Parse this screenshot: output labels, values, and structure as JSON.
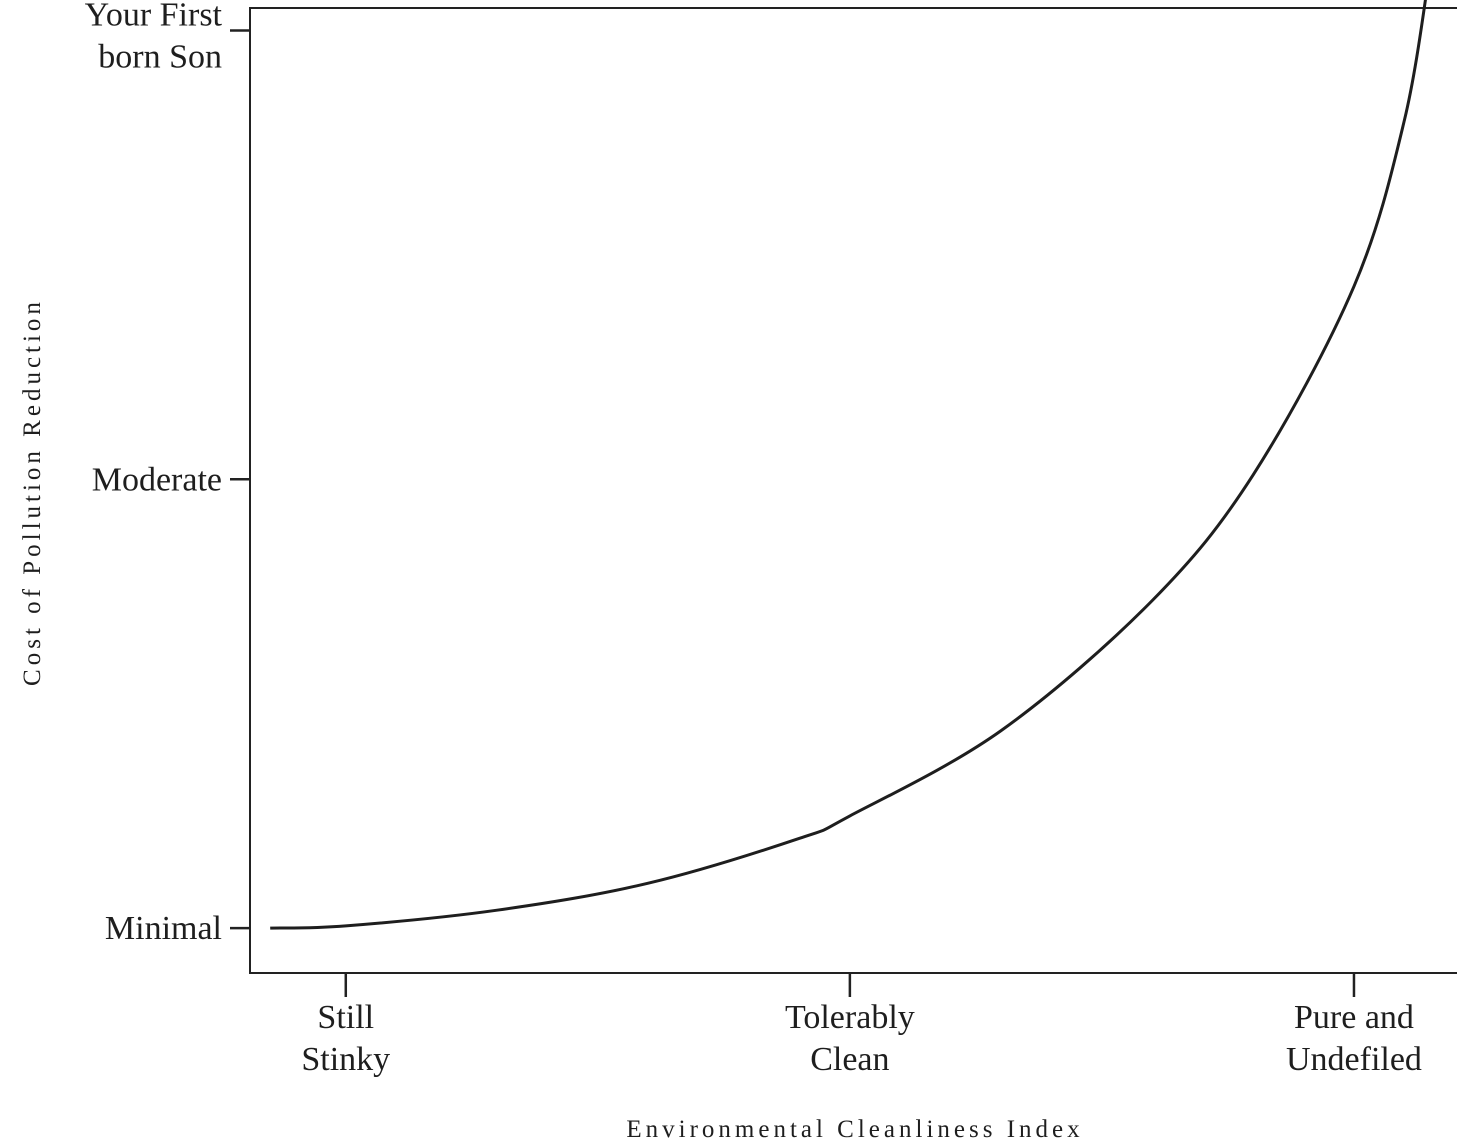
{
  "chart_data": {
    "type": "line",
    "title": "",
    "xlabel": "Environmental Cleanliness Index",
    "ylabel": "Cost of Pollution Reduction",
    "x_categories": [
      {
        "position": 1,
        "lines": [
          "Still",
          "Stinky"
        ]
      },
      {
        "position": 2,
        "lines": [
          "Tolerably",
          "Clean"
        ]
      },
      {
        "position": 3,
        "lines": [
          "Pure and",
          "Undefiled"
        ]
      }
    ],
    "y_categories": [
      {
        "position": 0,
        "lines": [
          "Minimal"
        ]
      },
      {
        "position": 1,
        "lines": [
          "Moderate"
        ]
      },
      {
        "position": 2,
        "lines": [
          "Your First",
          "born Son"
        ]
      }
    ],
    "xlim": [
      0.81,
      3.25
    ],
    "ylim": [
      -0.1,
      2.05
    ],
    "grid": false,
    "legend": "none",
    "series": [
      {
        "x": [
          0.85,
          1.0,
          1.3,
          1.6,
          1.9,
          2.0,
          2.3,
          2.6,
          2.8,
          3.0,
          3.1,
          3.15
        ],
        "y": [
          0.0,
          0.005,
          0.04,
          0.1,
          0.2,
          0.25,
          0.44,
          0.73,
          1.01,
          1.43,
          1.8,
          2.13
        ]
      }
    ],
    "colors": {
      "line": "#1e1e1e",
      "frame": "#222222",
      "text": "#1e1e1e"
    }
  }
}
